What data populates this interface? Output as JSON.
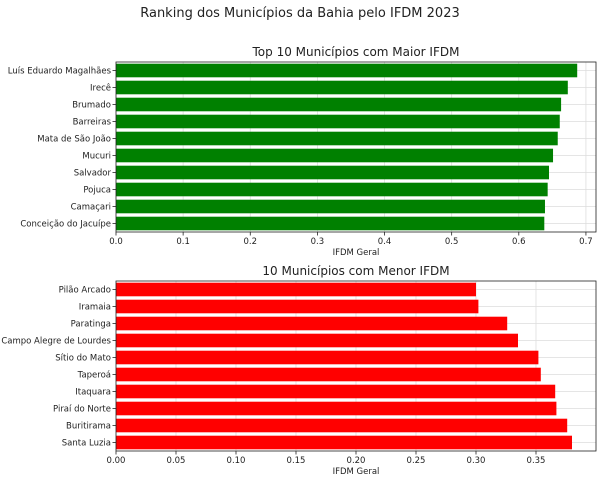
{
  "figure": {
    "suptitle": "Ranking dos Municípios da Bahia pelo IFDM 2023"
  },
  "chart_data": [
    {
      "type": "bar",
      "orientation": "horizontal",
      "title": "Top 10 Municípios com Maior IFDM",
      "xlabel": "IFDM Geral",
      "ylabel": "",
      "color": "#008000",
      "xlim": [
        0,
        0.715
      ],
      "xticks": [
        "0.0",
        "0.1",
        "0.2",
        "0.3",
        "0.4",
        "0.5",
        "0.6",
        "0.7"
      ],
      "grid": true,
      "categories": [
        "Luís Eduardo Magalhães",
        "Irecê",
        "Brumado",
        "Barreiras",
        "Mata de São João",
        "Mucuri",
        "Salvador",
        "Pojuca",
        "Camaçari",
        "Conceição do Jacuípe"
      ],
      "values": [
        0.687,
        0.673,
        0.663,
        0.661,
        0.658,
        0.651,
        0.645,
        0.643,
        0.639,
        0.638
      ]
    },
    {
      "type": "bar",
      "orientation": "horizontal",
      "title": "10 Municípios com Menor IFDM",
      "xlabel": "IFDM Geral",
      "ylabel": "",
      "color": "#ff0000",
      "xlim": [
        0,
        0.4
      ],
      "xticks": [
        "0.00",
        "0.05",
        "0.10",
        "0.15",
        "0.20",
        "0.25",
        "0.30",
        "0.35"
      ],
      "grid": true,
      "categories": [
        "Pilão Arcado",
        "Iramaia",
        "Paratinga",
        "Campo Alegre de Lourdes",
        "Sítio do Mato",
        "Taperoá",
        "Itaquara",
        "Piraí do Norte",
        "Buritirama",
        "Santa Luzia"
      ],
      "values": [
        0.3,
        0.302,
        0.326,
        0.335,
        0.352,
        0.354,
        0.366,
        0.367,
        0.376,
        0.38
      ]
    }
  ]
}
